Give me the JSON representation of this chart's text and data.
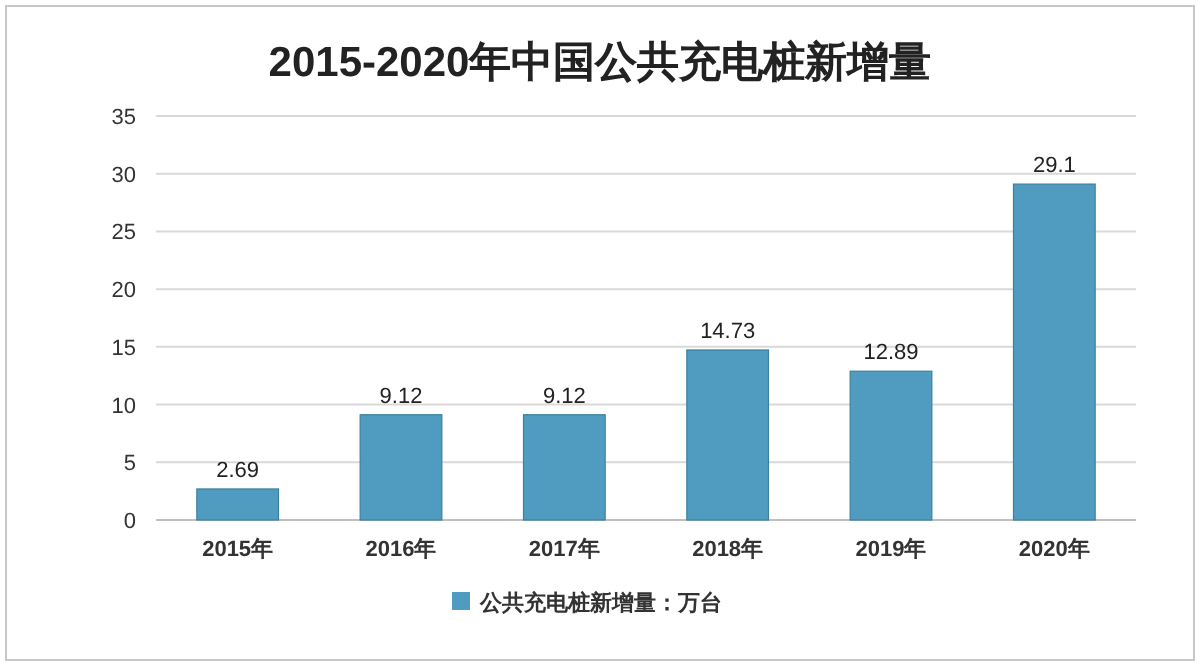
{
  "chart_data": {
    "type": "bar",
    "title": "2015-2020年中国公共充电桩新增量",
    "categories": [
      "2015年",
      "2016年",
      "2017年",
      "2018年",
      "2019年",
      "2020年"
    ],
    "series": [
      {
        "name": "公共充电桩新增量：万台",
        "color": "#4f9cc0",
        "values": [
          2.69,
          9.12,
          9.12,
          14.73,
          12.89,
          29.1
        ]
      }
    ],
    "ylim": [
      0,
      35
    ],
    "yticks": [
      0,
      5,
      10,
      15,
      20,
      25,
      30,
      35
    ],
    "grid": "y",
    "legend": "bottom",
    "data_labels": true
  }
}
